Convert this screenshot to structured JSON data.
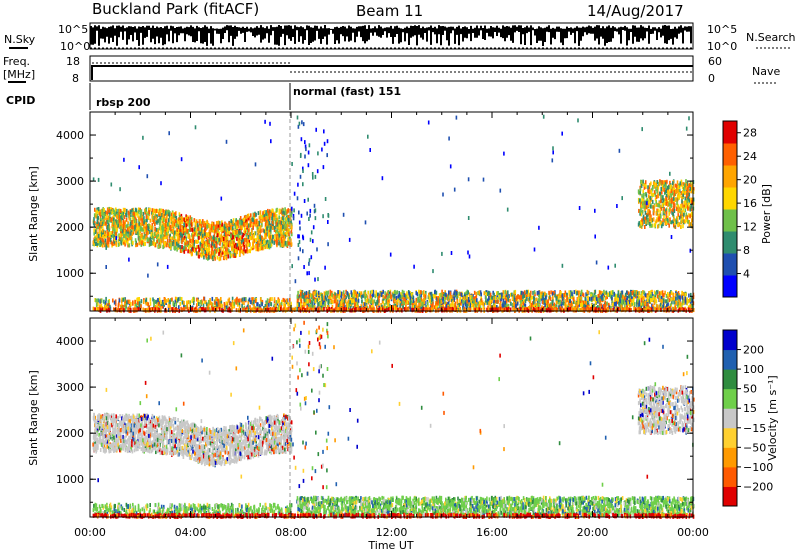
{
  "header": {
    "title": "Buckland Park (fitACF)",
    "beam": "Beam 11",
    "date": "14/Aug/2017"
  },
  "panels": {
    "nsky_label": "N.Sky",
    "nsearch_label": "N.Search",
    "noise_ticks_left": [
      "10^5",
      "10^0"
    ],
    "noise_ticks_right": [
      "10^5",
      "10^0"
    ],
    "freq_label_line1": "Freq.",
    "freq_label_line2": "[MHz]",
    "freq_ticks": [
      "18",
      "8"
    ],
    "nave_label": "Nave",
    "nave_ticks": [
      "60",
      "0"
    ],
    "cpid_label": "CPID",
    "cpid_first": "rbsp 200",
    "cpid_second": "normal (fast) 151"
  },
  "colors": {
    "power_scale": [
      "#0000ff",
      "#1f4fb0",
      "#2f8c6f",
      "#6fc04a",
      "#ffd700",
      "#ffa500",
      "#ff6000",
      "#e00000"
    ],
    "velocity_scale": [
      "#e00000",
      "#ff5a00",
      "#ff9a00",
      "#ffd030",
      "#c8c8c8",
      "#6fcf4a",
      "#2f8c3f",
      "#2060b0",
      "#0000cc"
    ]
  },
  "chart_data": [
    {
      "type": "heatmap",
      "name": "power",
      "xlabel": "",
      "ylabel": "Slant Range [km]",
      "xlim": [
        0,
        24
      ],
      "ylim": [
        180,
        4500
      ],
      "y_ticks": [
        "1000",
        "2000",
        "3000",
        "4000"
      ],
      "colorbar_label": "Power [dB]",
      "colorbar_ticks": [
        "4",
        "8",
        "12",
        "16",
        "20",
        "24",
        "28"
      ],
      "colorbar_range": [
        0,
        30
      ]
    },
    {
      "type": "heatmap",
      "name": "velocity",
      "xlabel": "Time UT",
      "ylabel": "Slant Range [km]",
      "xlim": [
        0,
        24
      ],
      "ylim": [
        180,
        4500
      ],
      "x_ticks": [
        "00:00",
        "04:00",
        "08:00",
        "12:00",
        "16:00",
        "20:00",
        "00:00"
      ],
      "y_ticks": [
        "1000",
        "2000",
        "3000",
        "4000"
      ],
      "colorbar_label": "Velocity [m s⁻¹]",
      "colorbar_ticks": [
        "200",
        "100",
        "50",
        "15",
        "−15",
        "−50",
        "−100",
        "−200"
      ]
    }
  ]
}
